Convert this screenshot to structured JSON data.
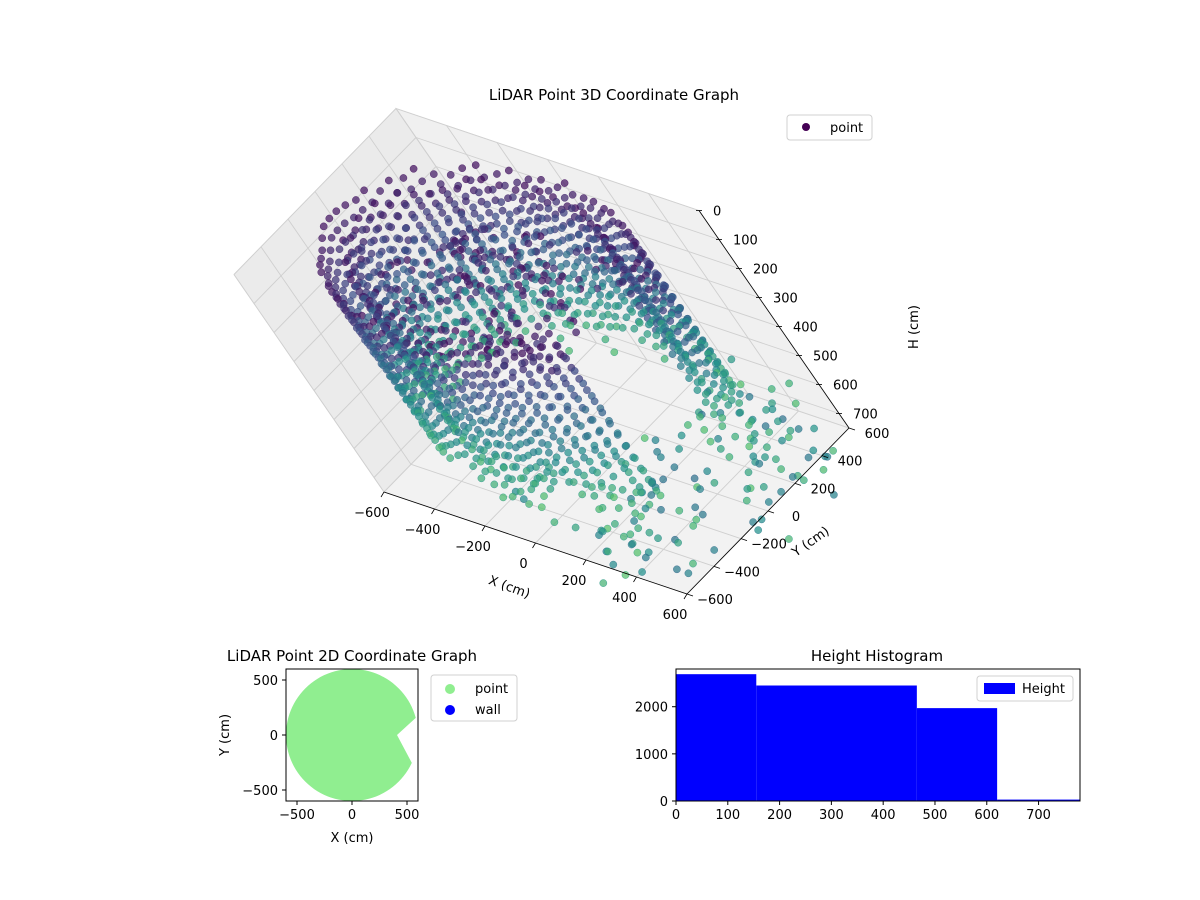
{
  "chart_data": [
    {
      "type": "scatter",
      "projection": "3d",
      "title": "LiDAR Point 3D Coordinate Graph",
      "xlabel": "X (cm)",
      "ylabel": "Y (cm)",
      "zlabel": "H (cm)",
      "xlim": [
        -600,
        600
      ],
      "ylim": [
        -600,
        600
      ],
      "zlim": [
        0,
        750
      ],
      "z_inverted": true,
      "xticks": [
        "−600",
        "−400",
        "−200",
        "0",
        "200",
        "400",
        "600"
      ],
      "yticks": [
        "−600",
        "−400",
        "−200",
        "0",
        "200",
        "400",
        "600"
      ],
      "zticks": [
        "0",
        "100",
        "200",
        "300",
        "400",
        "500",
        "600",
        "700"
      ],
      "grid": true,
      "legend": {
        "placement": "top-right",
        "entries": [
          {
            "label": "point",
            "color": "#440154"
          }
        ]
      },
      "colormap": "viridis",
      "point_layout": {
        "outer_ring_radius": 560,
        "inner_ring_radius": 470,
        "columns_outer": 64,
        "columns_inner": 56,
        "column_point_count": 14,
        "column_height_range": [
          40,
          640
        ],
        "gap_angle_range_deg": [
          -30,
          20
        ],
        "spray_point_count": 140,
        "spray_max_radius": 780
      }
    },
    {
      "type": "scatter",
      "title": "LiDAR Point 2D Coordinate Graph",
      "xlabel": "X (cm)",
      "ylabel": "Y (cm)",
      "xlim": [
        -600,
        600
      ],
      "ylim": [
        -600,
        600
      ],
      "xticks": [
        "−500",
        "0",
        "500"
      ],
      "yticks": [
        "−500",
        "0",
        "500"
      ],
      "legend": {
        "placement": "outside-right",
        "entries": [
          {
            "label": "point",
            "color": "#90ee90"
          },
          {
            "label": "wall",
            "color": "#0000ff"
          }
        ]
      },
      "region": {
        "shape": "disk-with-wedge-cutout",
        "center": [
          0,
          0
        ],
        "radius": 600,
        "wedge_from_deg": -25,
        "wedge_to_deg": 15,
        "color": "#90ee90"
      }
    },
    {
      "type": "bar",
      "subtype": "histogram",
      "title": "Height Histogram",
      "xlim": [
        0,
        780
      ],
      "ylim": [
        0,
        2800
      ],
      "xticks": [
        "0",
        "100",
        "200",
        "300",
        "400",
        "500",
        "600",
        "700"
      ],
      "yticks": [
        "0",
        "1000",
        "2000"
      ],
      "legend": {
        "placement": "top-right",
        "entries": [
          {
            "label": "Height",
            "color": "#0000ff"
          }
        ]
      },
      "bins": [
        {
          "from": 0,
          "to": 155,
          "count": 2690
        },
        {
          "from": 155,
          "to": 465,
          "count": 2450
        },
        {
          "from": 465,
          "to": 620,
          "count": 1970
        },
        {
          "from": 620,
          "to": 780,
          "count": 30
        }
      ],
      "bar_color": "#0000ff"
    }
  ]
}
